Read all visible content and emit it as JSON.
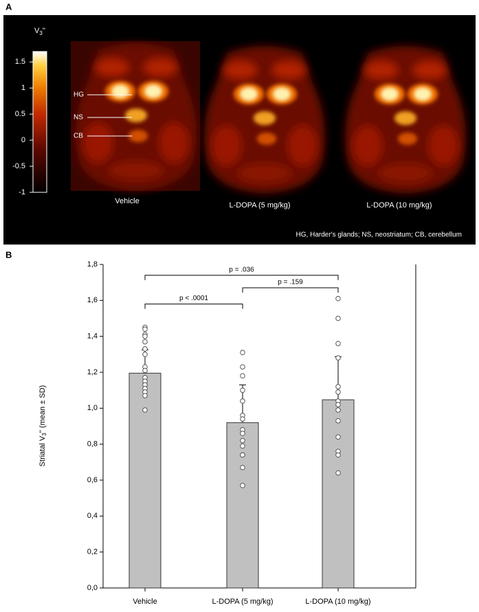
{
  "chart_data": [
    {
      "type": "heatmap-image",
      "panel": "A",
      "colorbar_label": {
        "main": "V",
        "sub": "3",
        "suffix": "''"
      },
      "colorbar_lim": [
        -1,
        1.7
      ],
      "colorbar_ticks": [
        1.5,
        1,
        0.5,
        0,
        -0.5,
        -1
      ],
      "image_labels": [
        "Vehicle",
        "L-DOPA (5 mg/kg)",
        "L-DOPA (10 mg/kg)"
      ],
      "region_labels": [
        "HG",
        "NS",
        "CB"
      ],
      "footnote": "HG, Harder's glands; NS, neostriatum; CB, cerebellum"
    },
    {
      "type": "bar",
      "panel": "B",
      "ylabel": {
        "main": "Striatal V",
        "sub": "3",
        "suffix": "'' (mean ± SD)"
      },
      "categories": [
        "Vehicle",
        "L-DOPA (5 mg/kg)",
        "L-DOPA (10 mg/kg)"
      ],
      "values": [
        1.195,
        0.92,
        1.047
      ],
      "errors": [
        0.13,
        0.21,
        0.24
      ],
      "color": "#c0c0c0",
      "points": [
        [
          1.45,
          1.44,
          1.41,
          1.4,
          1.37,
          1.33,
          1.3,
          1.23,
          1.21,
          1.17,
          1.15,
          1.13,
          1.11,
          1.09,
          1.07,
          0.99
        ],
        [
          1.31,
          1.23,
          1.18,
          1.1,
          1.04,
          0.96,
          0.94,
          0.88,
          0.86,
          0.82,
          0.79,
          0.74,
          0.74,
          0.67,
          0.57
        ],
        [
          1.61,
          1.5,
          1.36,
          1.28,
          1.12,
          1.09,
          1.04,
          1.02,
          0.99,
          0.93,
          0.84,
          0.76,
          0.74,
          0.64
        ]
      ],
      "comparisons": [
        {
          "label": "p = .036",
          "y": 1.74,
          "groups": [
            "Vehicle",
            "L-DOPA (10 mg/kg)"
          ]
        },
        {
          "label": "p = .159",
          "y": 1.67,
          "groups": [
            "L-DOPA (5 mg/kg)",
            "L-DOPA (10 mg/kg)"
          ]
        },
        {
          "label": "p < .0001",
          "y": 1.58,
          "groups": [
            "Vehicle",
            "L-DOPA (5 mg/kg)"
          ]
        }
      ],
      "ylim": [
        0,
        1.8
      ],
      "yticks": [
        {
          "value": 0,
          "label": "0,0"
        },
        {
          "value": 0.2,
          "label": "0,2"
        },
        {
          "value": 0.4,
          "label": "0,4"
        },
        {
          "value": 0.6,
          "label": "0,6"
        },
        {
          "value": 0.8,
          "label": "0,8"
        },
        {
          "value": 1,
          "label": "1,0"
        },
        {
          "value": 1.2,
          "label": "1,2"
        },
        {
          "value": 1.4,
          "label": "1,4"
        },
        {
          "value": 1.6,
          "label": "1,6"
        },
        {
          "value": 1.8,
          "label": "1,8"
        }
      ]
    }
  ]
}
